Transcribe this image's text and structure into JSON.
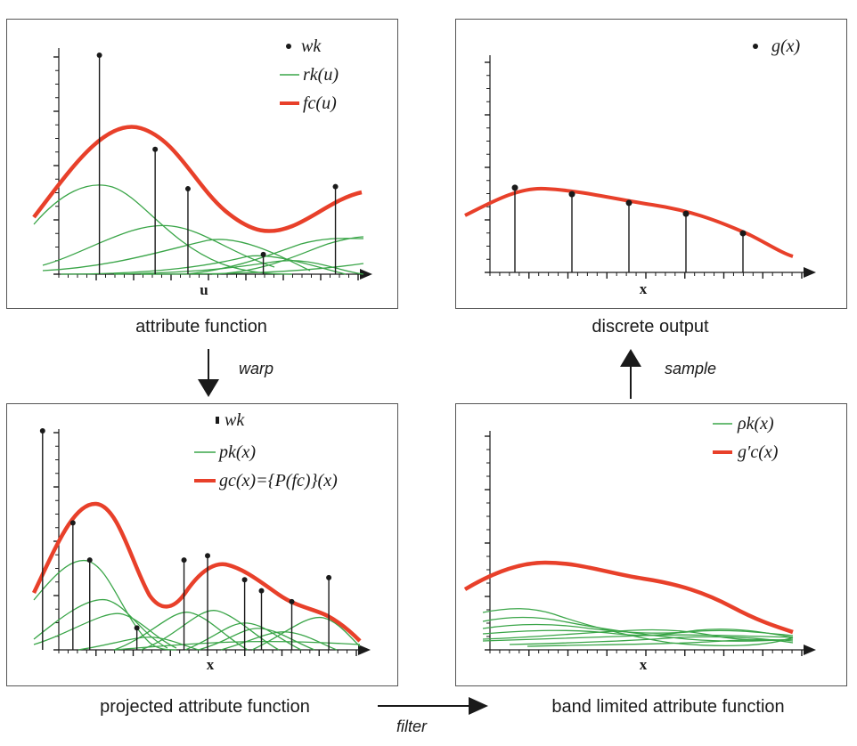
{
  "panels": {
    "attribute": {
      "caption": "attribute function",
      "axis_label": "u",
      "legend": [
        "wk",
        "rk(u)",
        "fc(u)"
      ],
      "samples": [
        {
          "x": 0.2,
          "h": 1.0
        },
        {
          "x": 0.37,
          "h": 0.57
        },
        {
          "x": 0.47,
          "h": 0.39
        },
        {
          "x": 0.7,
          "h": 0.09
        },
        {
          "x": 0.92,
          "h": 0.4
        }
      ]
    },
    "discrete": {
      "caption": "discrete output",
      "axis_label": "x",
      "legend": [
        "g(x)"
      ],
      "samples": [
        {
          "x": 0.2,
          "h": 0.39
        },
        {
          "x": 0.4,
          "h": 0.36
        },
        {
          "x": 0.6,
          "h": 0.32
        },
        {
          "x": 0.8,
          "h": 0.27
        },
        {
          "x": 1.0,
          "h": 0.18
        }
      ]
    },
    "projected": {
      "caption": "projected attribute function",
      "axis_label": "x",
      "legend": [
        "wk",
        "pk(x)",
        "gc(x)={P(fc)}(x)"
      ],
      "samples": [
        {
          "x": 0.1,
          "h": 1.0
        },
        {
          "x": 0.19,
          "h": 0.58
        },
        {
          "x": 0.24,
          "h": 0.41
        },
        {
          "x": 0.38,
          "h": 0.1
        },
        {
          "x": 0.52,
          "h": 0.41
        },
        {
          "x": 0.59,
          "h": 0.43
        },
        {
          "x": 0.7,
          "h": 0.32
        },
        {
          "x": 0.75,
          "h": 0.27
        },
        {
          "x": 0.84,
          "h": 0.22
        },
        {
          "x": 0.95,
          "h": 0.33
        }
      ]
    },
    "band": {
      "caption": "band limited attribute function",
      "axis_label": "x",
      "legend": [
        "ρk(x)",
        "g′c(x)"
      ]
    }
  },
  "operations": {
    "warp": "warp",
    "sample": "sample",
    "filter": "filter"
  },
  "colors": {
    "accent_red": "#e8402a",
    "green": "#3aa548",
    "black": "#1a1a1a"
  }
}
